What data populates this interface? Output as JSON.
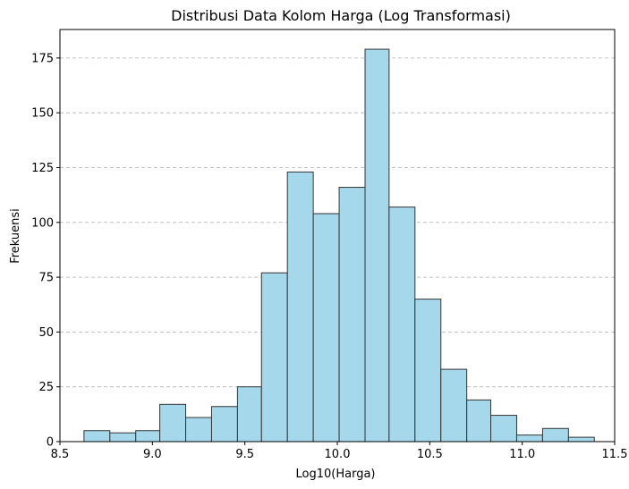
{
  "chart_data": {
    "type": "bar",
    "title": "Distribusi Data Kolom Harga (Log Transformasi)",
    "xlabel": "Log10(Harga)",
    "ylabel": "Frekuensi",
    "xlim": [
      8.5,
      11.5
    ],
    "ylim": [
      0,
      188
    ],
    "x_ticks": [
      8.5,
      9.0,
      9.5,
      10.0,
      10.5,
      11.0,
      11.5
    ],
    "x_tick_labels": [
      "8.5",
      "9.0",
      "9.5",
      "10.0",
      "10.5",
      "11.0",
      "11.5"
    ],
    "y_ticks": [
      0,
      25,
      50,
      75,
      100,
      125,
      150,
      175
    ],
    "y_tick_labels": [
      "0",
      "25",
      "50",
      "75",
      "100",
      "125",
      "150",
      "175"
    ],
    "grid": "y-dashed",
    "bar_color": "#a6d8ec",
    "edge_color": "#333333",
    "bins": [
      {
        "start": 8.63,
        "end": 8.77,
        "count": 5
      },
      {
        "start": 8.77,
        "end": 8.91,
        "count": 4
      },
      {
        "start": 8.91,
        "end": 9.04,
        "count": 5
      },
      {
        "start": 9.04,
        "end": 9.18,
        "count": 17
      },
      {
        "start": 9.18,
        "end": 9.32,
        "count": 11
      },
      {
        "start": 9.32,
        "end": 9.46,
        "count": 16
      },
      {
        "start": 9.46,
        "end": 9.59,
        "count": 25
      },
      {
        "start": 9.59,
        "end": 9.73,
        "count": 77
      },
      {
        "start": 9.73,
        "end": 9.87,
        "count": 123
      },
      {
        "start": 9.87,
        "end": 10.01,
        "count": 104
      },
      {
        "start": 10.01,
        "end": 10.15,
        "count": 116
      },
      {
        "start": 10.15,
        "end": 10.28,
        "count": 179
      },
      {
        "start": 10.28,
        "end": 10.42,
        "count": 107
      },
      {
        "start": 10.42,
        "end": 10.56,
        "count": 65
      },
      {
        "start": 10.56,
        "end": 10.7,
        "count": 33
      },
      {
        "start": 10.7,
        "end": 10.83,
        "count": 19
      },
      {
        "start": 10.83,
        "end": 10.97,
        "count": 12
      },
      {
        "start": 10.97,
        "end": 11.11,
        "count": 3
      },
      {
        "start": 11.11,
        "end": 11.25,
        "count": 6
      },
      {
        "start": 11.25,
        "end": 11.39,
        "count": 2
      }
    ]
  }
}
